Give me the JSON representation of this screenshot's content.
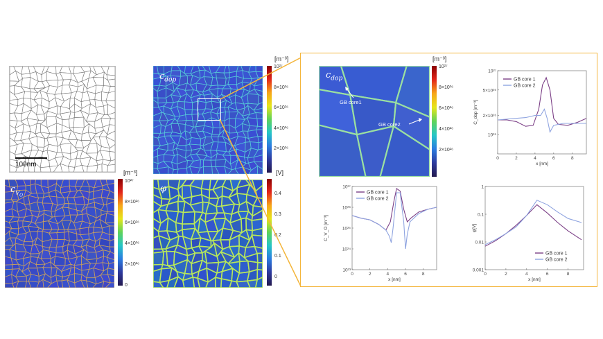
{
  "figure": {
    "scale_bar_label": "100nm",
    "maps": {
      "cdop_top": {
        "symbol": "c",
        "subscript": "dop"
      },
      "cvo": {
        "symbol": "c",
        "subscript": "V",
        "subsub": "O",
        "dots": "••"
      },
      "phi": {
        "symbol": "φ"
      },
      "cdop_zoom": {
        "symbol": "c",
        "subscript": "dop"
      }
    },
    "colorbars": {
      "conc_unit": "[m⁻³]",
      "conc_ticks": [
        "10²⁷",
        "8×10²⁶",
        "6×10²⁶",
        "4×10²⁶",
        "2×10²⁶",
        "0"
      ],
      "conc_ticks_zoom": [
        "10²⁷",
        "8×10²⁶",
        "6×10²⁶",
        "4×10²⁶",
        "2×10²⁶"
      ],
      "phi_unit": "[V]",
      "phi_ticks": [
        "0.4",
        "0.3",
        "0.2",
        "0.1",
        "0"
      ]
    },
    "annotations": {
      "gb1": "GB core1",
      "gb2": "GB core2"
    },
    "colors": {
      "gb_core_1": "#7b3f86",
      "gb_core_2": "#8fa4e0",
      "highlight_border": "#f4b53a"
    }
  },
  "chart_data": [
    {
      "type": "line",
      "id": "cdop_profile",
      "ylabel": "C_dop [m⁻³]",
      "xlabel": "x [nm]",
      "xlim": [
        0,
        9.5
      ],
      "ylim": [
        5e+25,
        1e+27
      ],
      "yscale": "linear-labeled",
      "xticks": [
        "0",
        "2",
        "4",
        "6",
        "8"
      ],
      "yticks": [
        "10²⁷",
        "5×10²⁶",
        "2×10²⁶",
        "10²⁶"
      ],
      "series": [
        {
          "name": "GB core 1",
          "x": [
            0,
            1,
            2,
            3,
            3.8,
            4.4,
            4.8,
            5.2,
            5.6,
            6.0,
            6.5,
            7.5,
            8.5,
            9.5
          ],
          "y": [
            1.7e+26,
            1.7e+26,
            1.6e+26,
            1.35e+26,
            1.4e+26,
            2.5e+26,
            6e+26,
            7.8e+26,
            5e+26,
            1.8e+26,
            1.45e+26,
            1.4e+26,
            1.55e+26,
            1.8e+26
          ]
        },
        {
          "name": "GB core 2",
          "x": [
            0,
            1,
            2,
            3,
            4,
            4.6,
            5.0,
            5.3,
            5.6,
            6.0,
            7,
            8,
            9.5
          ],
          "y": [
            1.7e+26,
            1.75e+26,
            1.8e+26,
            1.85e+26,
            2e+26,
            2e+26,
            2.5e+26,
            1.8e+26,
            1.1e+26,
            1.4e+26,
            1.5e+26,
            1.5e+26,
            1.5e+26
          ]
        }
      ]
    },
    {
      "type": "line",
      "id": "cvo_profile",
      "ylabel": "C_V_O [m⁻³]",
      "xlabel": "x [nm]",
      "xlim": [
        0,
        9.5
      ],
      "ylim": [
        1e+23,
        1e+27
      ],
      "yscale": "log",
      "xticks": [
        "0",
        "2",
        "4",
        "6",
        "8"
      ],
      "yticks": [
        "10²⁷",
        "10²⁶",
        "10²⁵",
        "10²⁴",
        "10²³"
      ],
      "series": [
        {
          "name": "GB core 1",
          "x": [
            0,
            1,
            2,
            3,
            3.8,
            4.3,
            4.7,
            5.0,
            5.4,
            5.8,
            6.2,
            6.6,
            7.5,
            8.5,
            9.5
          ],
          "y": [
            4e+25,
            3e+25,
            2.5e+25,
            1.5e+25,
            8e+24,
            2e+25,
            2e+26,
            8e+26,
            6e+26,
            8e+25,
            2e+25,
            3e+25,
            6e+25,
            8e+25,
            1e+26
          ]
        },
        {
          "name": "GB core 2",
          "x": [
            0,
            1,
            2,
            3,
            3.8,
            4.2,
            4.4,
            4.6,
            5.0,
            5.4,
            5.8,
            6.0,
            6.2,
            6.5,
            7.5,
            8.5,
            9.5
          ],
          "y": [
            4e+25,
            3e+25,
            2.5e+25,
            1.5e+25,
            8e+24,
            4e+24,
            2e+24,
            1e+25,
            5e+26,
            5e+26,
            2e+25,
            1e+24,
            5e+24,
            2e+25,
            5e+25,
            8e+25,
            1e+26
          ]
        }
      ]
    },
    {
      "type": "line",
      "id": "phi_profile",
      "ylabel": "φ[V]",
      "xlabel": "x [nm]",
      "xlim": [
        0,
        9.5
      ],
      "ylim": [
        0.001,
        1
      ],
      "yscale": "log",
      "xticks": [
        "0",
        "2",
        "4",
        "6",
        "8"
      ],
      "yticks": [
        "1",
        "0.1",
        "0.01",
        "0.001"
      ],
      "series": [
        {
          "name": "GB core 1",
          "x": [
            0,
            1,
            2,
            3,
            4,
            5,
            6,
            7,
            8,
            9.3
          ],
          "y": [
            0.007,
            0.011,
            0.02,
            0.04,
            0.09,
            0.22,
            0.11,
            0.05,
            0.025,
            0.012
          ]
        },
        {
          "name": "GB core 2",
          "x": [
            0,
            1,
            2,
            3,
            4,
            5,
            6,
            7,
            8,
            9.3
          ],
          "y": [
            0.008,
            0.012,
            0.02,
            0.035,
            0.09,
            0.32,
            0.22,
            0.12,
            0.07,
            0.05
          ]
        }
      ]
    }
  ]
}
